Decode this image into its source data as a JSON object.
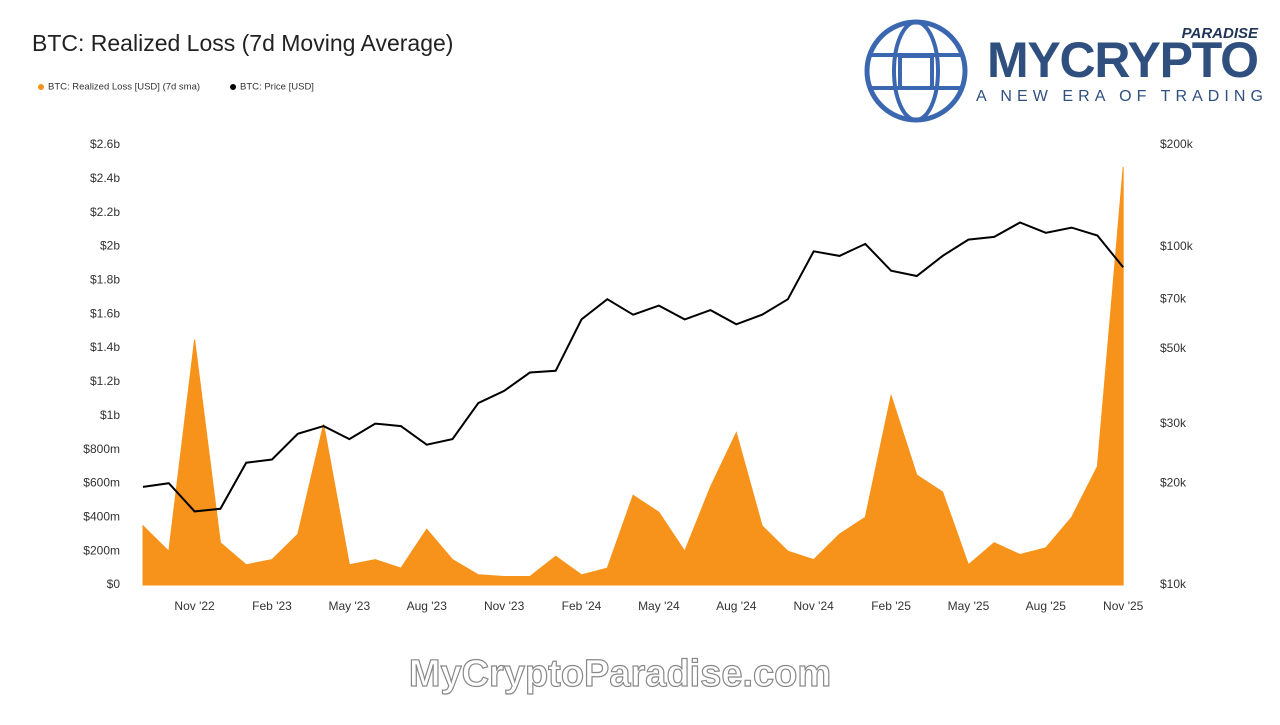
{
  "chart_data": {
    "type": "area-line",
    "title": "BTC: Realized Loss (7d Moving Average)",
    "x": [
      "2022-09",
      "2022-10",
      "2022-11",
      "2022-12",
      "2023-01",
      "2023-02",
      "2023-03",
      "2023-04",
      "2023-05",
      "2023-06",
      "2023-07",
      "2023-08",
      "2023-09",
      "2023-10",
      "2023-11",
      "2023-12",
      "2024-01",
      "2024-02",
      "2024-03",
      "2024-04",
      "2024-05",
      "2024-06",
      "2024-07",
      "2024-08",
      "2024-09",
      "2024-10",
      "2024-11",
      "2024-12",
      "2025-01",
      "2025-02",
      "2025-03",
      "2025-04",
      "2025-05",
      "2025-06",
      "2025-07",
      "2025-08",
      "2025-09",
      "2025-10",
      "2025-11"
    ],
    "series": [
      {
        "name": "BTC: Realized Loss [USD] (7d sma)",
        "color": "#f7931a",
        "axis": "y",
        "values": [
          350000000,
          200000000,
          1450000000,
          250000000,
          120000000,
          150000000,
          300000000,
          950000000,
          120000000,
          150000000,
          100000000,
          330000000,
          150000000,
          60000000,
          50000000,
          50000000,
          170000000,
          60000000,
          100000000,
          530000000,
          430000000,
          200000000,
          580000000,
          900000000,
          350000000,
          200000000,
          150000000,
          300000000,
          400000000,
          1120000000,
          650000000,
          550000000,
          120000000,
          250000000,
          180000000,
          220000000,
          400000000,
          700000000,
          2470000000
        ]
      },
      {
        "name": "BTC: Price [USD]",
        "color": "#000000",
        "axis": "y2",
        "values": [
          19500,
          20000,
          16500,
          16800,
          23000,
          23500,
          28000,
          29500,
          27000,
          30000,
          29500,
          26000,
          27000,
          34500,
          37500,
          42500,
          43000,
          61000,
          70000,
          63000,
          67000,
          61000,
          65000,
          59000,
          63000,
          70000,
          97000,
          94000,
          102000,
          85000,
          82000,
          94000,
          105000,
          107000,
          118000,
          110000,
          114000,
          108000,
          87000
        ]
      }
    ],
    "xlim": [
      "2022-09",
      "2025-12"
    ],
    "xticks": [
      {
        "value": "2022-11",
        "label": "Nov '22"
      },
      {
        "value": "2023-02",
        "label": "Feb '23"
      },
      {
        "value": "2023-05",
        "label": "May '23"
      },
      {
        "value": "2023-08",
        "label": "Aug '23"
      },
      {
        "value": "2023-11",
        "label": "Nov '23"
      },
      {
        "value": "2024-02",
        "label": "Feb '24"
      },
      {
        "value": "2024-05",
        "label": "May '24"
      },
      {
        "value": "2024-08",
        "label": "Aug '24"
      },
      {
        "value": "2024-11",
        "label": "Nov '24"
      },
      {
        "value": "2025-02",
        "label": "Feb '25"
      },
      {
        "value": "2025-05",
        "label": "May '25"
      },
      {
        "value": "2025-08",
        "label": "Aug '25"
      },
      {
        "value": "2025-11",
        "label": "Nov '25"
      }
    ],
    "ylim": [
      0,
      2600000000
    ],
    "yticks": [
      {
        "value": 0,
        "label": "$0"
      },
      {
        "value": 200000000,
        "label": "$200m"
      },
      {
        "value": 400000000,
        "label": "$400m"
      },
      {
        "value": 600000000,
        "label": "$600m"
      },
      {
        "value": 800000000,
        "label": "$800m"
      },
      {
        "value": 1000000000,
        "label": "$1b"
      },
      {
        "value": 1200000000,
        "label": "$1.2b"
      },
      {
        "value": 1400000000,
        "label": "$1.4b"
      },
      {
        "value": 1600000000,
        "label": "$1.6b"
      },
      {
        "value": 1800000000,
        "label": "$1.8b"
      },
      {
        "value": 2000000000,
        "label": "$2b"
      },
      {
        "value": 2200000000,
        "label": "$2.2b"
      },
      {
        "value": 2400000000,
        "label": "$2.4b"
      },
      {
        "value": 2600000000,
        "label": "$2.6b"
      }
    ],
    "y2lim": [
      10000,
      200000
    ],
    "y2scale": "log",
    "y2ticks": [
      {
        "value": 10000,
        "label": "$10k"
      },
      {
        "value": 20000,
        "label": "$20k"
      },
      {
        "value": 30000,
        "label": "$30k"
      },
      {
        "value": 50000,
        "label": "$50k"
      },
      {
        "value": 70000,
        "label": "$70k"
      },
      {
        "value": 100000,
        "label": "$100k"
      },
      {
        "value": 200000,
        "label": "$200k"
      }
    ]
  },
  "logo": {
    "brand": "MYCRYPTO",
    "tag": "PARADISE",
    "slogan": "A NEW ERA OF TRADING"
  },
  "watermark": "MyCryptoParadise.com"
}
